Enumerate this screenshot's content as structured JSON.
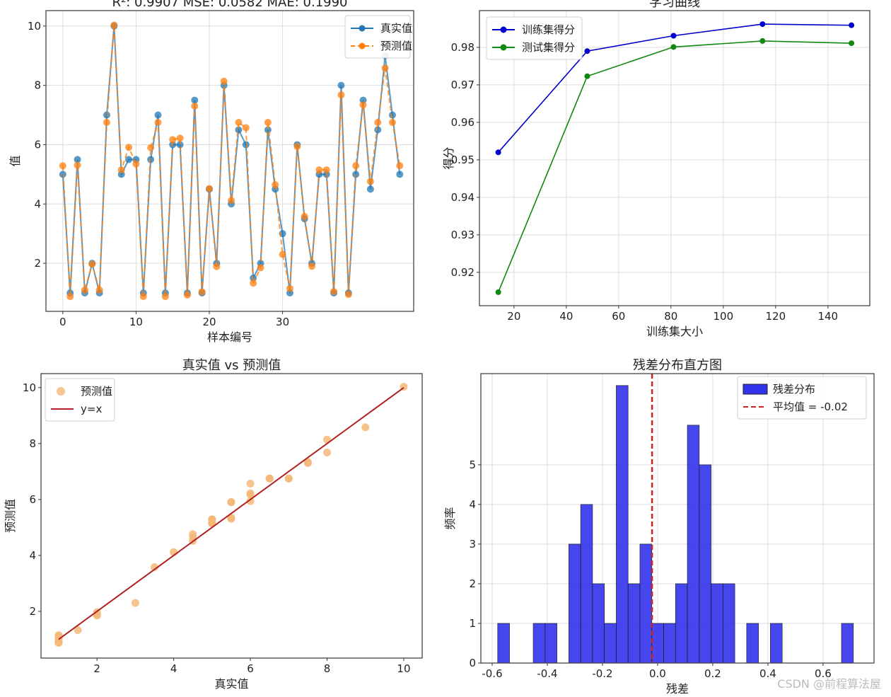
{
  "chart_data": [
    {
      "type": "line",
      "title": "R²: 0.9907     MSE: 0.0582     MAE: 0.1990",
      "xlabel": "样本编号",
      "ylabel": "值",
      "xlim": [
        -2.3,
        47.9
      ],
      "ylim": [
        0.38,
        10.52
      ],
      "xticks": [
        0,
        10,
        20,
        30
      ],
      "yticks": [
        2,
        4,
        6,
        8,
        10
      ],
      "grid": true,
      "legend": "top-right",
      "series": [
        {
          "name": "真实值",
          "color": "#1f77b4",
          "values": [
            5.0,
            1.0,
            5.5,
            1.0,
            2.0,
            1.0,
            7.0,
            10.0,
            5.0,
            5.5,
            5.5,
            1.0,
            5.5,
            7.0,
            1.0,
            6.0,
            6.0,
            1.0,
            7.5,
            1.0,
            4.5,
            2.0,
            8.0,
            4.0,
            6.5,
            6.0,
            1.5,
            2.0,
            6.5,
            4.5,
            3.0,
            1.0,
            6.0,
            3.5,
            2.0,
            5.0,
            5.0,
            1.0,
            8.0,
            1.0,
            5.0,
            7.5,
            4.5,
            6.5,
            9.0,
            7.0,
            5.0
          ]
        },
        {
          "name": "预测值",
          "color": "#ff7f0e",
          "values": [
            5.29,
            0.88,
            5.31,
            1.1,
            1.97,
            1.1,
            6.75,
            10.03,
            5.15,
            5.91,
            5.35,
            0.88,
            5.9,
            6.75,
            0.88,
            6.17,
            6.22,
            0.93,
            7.3,
            1.04,
            4.52,
            1.89,
            8.14,
            4.12,
            6.75,
            6.57,
            1.33,
            1.85,
            6.75,
            4.65,
            2.3,
            1.15,
            5.94,
            3.58,
            1.9,
            5.15,
            5.15,
            1.05,
            7.68,
            0.95,
            5.29,
            7.34,
            4.76,
            6.75,
            8.58,
            6.75,
            5.29
          ]
        }
      ]
    },
    {
      "type": "line",
      "title": "学习曲线",
      "xlabel": "训练集大小",
      "ylabel": "得分",
      "xlim": [
        6.8,
        156
      ],
      "ylim": [
        0.9111,
        0.9898
      ],
      "xticks": [
        20,
        40,
        60,
        80,
        100,
        120,
        140
      ],
      "yticks": [
        0.92,
        0.93,
        0.94,
        0.95,
        0.96,
        0.97,
        0.98
      ],
      "grid": true,
      "legend": "top-left",
      "x": [
        14,
        48,
        81,
        115,
        149
      ],
      "series": [
        {
          "name": "训练集得分",
          "color": "#0000cc",
          "values": [
            0.952,
            0.979,
            0.9831,
            0.9862,
            0.9859
          ]
        },
        {
          "name": "测试集得分",
          "color": "#118811",
          "values": [
            0.9147,
            0.9723,
            0.9801,
            0.9817,
            0.9811
          ]
        }
      ]
    },
    {
      "type": "scatter",
      "title": "真实值 vs 预测值",
      "xlabel": "真实值",
      "ylabel": "预测值",
      "xlim": [
        0.54,
        10.48
      ],
      "ylim": [
        0.33,
        10.5
      ],
      "xticks": [
        2,
        4,
        6,
        8,
        10
      ],
      "yticks": [
        2,
        4,
        6,
        8,
        10
      ],
      "grid": false,
      "legend": "top-left",
      "series": [
        {
          "name": "预测值",
          "color": "#f5b878",
          "source": "uses series of chart 1"
        },
        {
          "name": "y=x",
          "color": "#b22222",
          "x": [
            1,
            10
          ],
          "values": [
            1,
            10
          ]
        }
      ]
    },
    {
      "type": "bar",
      "title": "残差分布直方图",
      "xlabel": "残差",
      "ylabel": "频率",
      "xlim": [
        -0.641,
        0.785
      ],
      "ylim": [
        0,
        7.3
      ],
      "xticks": [
        -0.6,
        -0.4,
        -0.2,
        0.0,
        0.2,
        0.4,
        0.6
      ],
      "xtick_labels": [
        "-0.6",
        "-0.4",
        "-0.2",
        "0.0",
        "0.2",
        "0.4",
        "0.6"
      ],
      "yticks": [
        0,
        1,
        2,
        3,
        4,
        5
      ],
      "grid": true,
      "legend": "top-right",
      "bin_start": -0.58,
      "bin_width": 0.043,
      "counts": [
        1,
        0,
        0,
        1,
        1,
        0,
        3,
        4,
        2,
        1,
        7,
        2,
        3,
        1,
        1,
        2,
        6,
        5,
        2,
        2,
        0,
        1,
        0,
        1,
        0,
        0,
        0,
        0,
        0,
        1
      ],
      "bar_color": "#3333ee",
      "series_name": "残差分布",
      "mean_line": {
        "value": -0.02,
        "label": "平均值 = -0.02",
        "color": "#cc2222"
      }
    }
  ],
  "watermark": "CSDN @前程算法屋"
}
